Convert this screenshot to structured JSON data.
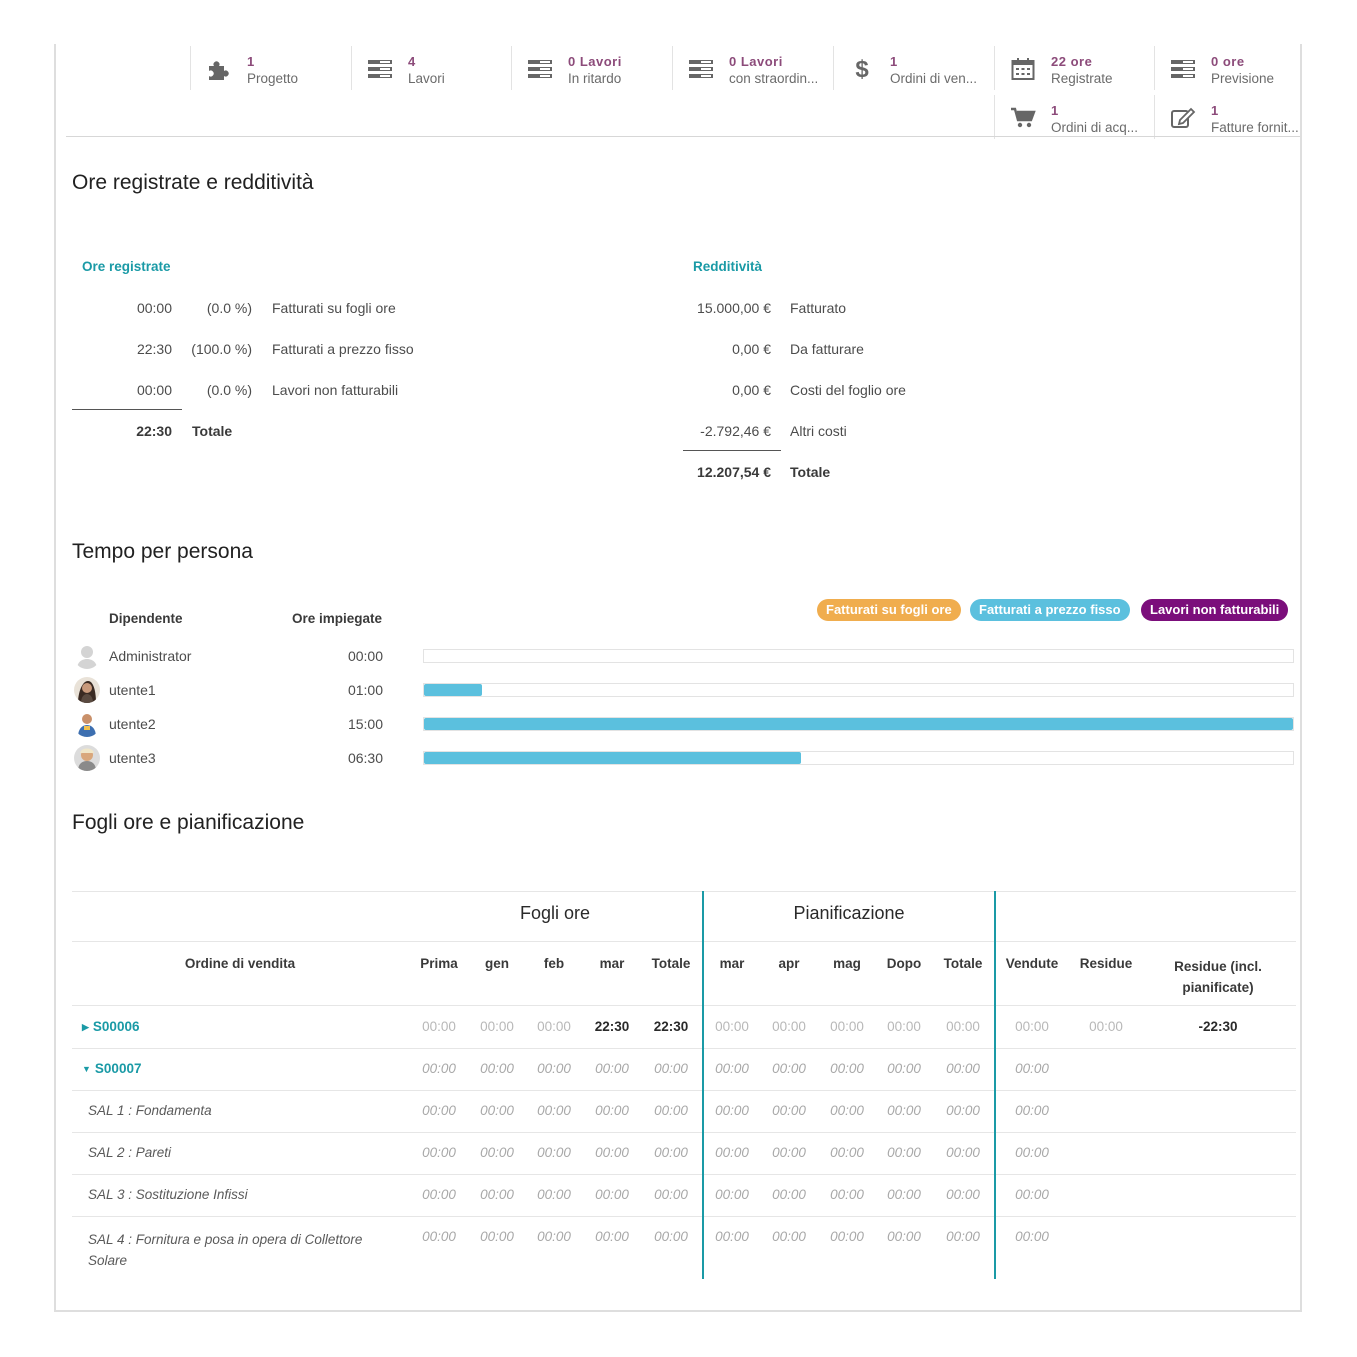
{
  "stats": [
    {
      "num": "1",
      "label": "Progetto",
      "icon": "puzzle-icon"
    },
    {
      "num": "4",
      "label": "Lavori",
      "icon": "tasks-icon"
    },
    {
      "num": "0 Lavori",
      "label": "In ritardo",
      "icon": "tasks-icon"
    },
    {
      "num": "0 Lavori",
      "label": "con straordin...",
      "icon": "tasks-icon"
    },
    {
      "num": "1",
      "label": "Ordini di ven...",
      "icon": "dollar-icon"
    },
    {
      "num": "22 ore",
      "label": "Registrate",
      "icon": "calendar-icon"
    },
    {
      "num": "0 ore",
      "label": "Previsione",
      "icon": "tasks-icon"
    },
    {
      "num": "1",
      "label": "Ordini di acq...",
      "icon": "cart-icon"
    },
    {
      "num": "1",
      "label": "Fatture fornit...",
      "icon": "edit-icon"
    }
  ],
  "section1": {
    "title": "Ore registrate e redditività",
    "hours_head": "Ore registrate",
    "hours_rows": [
      {
        "time": "00:00",
        "pct": "(0.0 %)",
        "label": "Fatturati su fogli ore"
      },
      {
        "time": "22:30",
        "pct": "(100.0 %)",
        "label": "Fatturati a prezzo fisso"
      },
      {
        "time": "00:00",
        "pct": "(0.0 %)",
        "label": "Lavori non fatturabili"
      }
    ],
    "hours_total": {
      "time": "22:30",
      "label": "Totale"
    },
    "profit_head": "Redditività",
    "profit_rows": [
      {
        "amount": "15.000,00 €",
        "label": "Fatturato"
      },
      {
        "amount": "0,00 €",
        "label": "Da fatturare"
      },
      {
        "amount": "0,00 €",
        "label": "Costi del foglio ore"
      },
      {
        "amount": "-2.792,46 €",
        "label": "Altri costi"
      }
    ],
    "profit_total": {
      "amount": "12.207,54 €",
      "label": "Totale"
    }
  },
  "section2": {
    "title": "Tempo per persona",
    "col_employee": "Dipendente",
    "col_hours": "Ore impiegate",
    "legend": [
      {
        "label": "Fatturati su fogli ore",
        "color": "#f0ad4e"
      },
      {
        "label": "Fatturati a prezzo fisso",
        "color": "#5bc0de"
      },
      {
        "label": "Lavori non fatturabili",
        "color": "#7b0e7b"
      }
    ],
    "people": [
      {
        "name": "Administrator",
        "hours": "00:00",
        "fraction": 0
      },
      {
        "name": "utente1",
        "hours": "01:00",
        "fraction": 0.0667
      },
      {
        "name": "utente2",
        "hours": "15:00",
        "fraction": 1.0
      },
      {
        "name": "utente3",
        "hours": "06:30",
        "fraction": 0.4333
      }
    ]
  },
  "section3": {
    "title": "Fogli ore e pianificazione",
    "group_timesheets": "Fogli ore",
    "group_planning": "Pianificazione",
    "col_order": "Ordine di vendita",
    "columns": [
      "Prima",
      "gen",
      "feb",
      "mar",
      "Totale",
      "mar",
      "apr",
      "mag",
      "Dopo",
      "Totale",
      "Vendute",
      "Residue"
    ],
    "col_remaining_incl_1": "Residue (incl.",
    "col_remaining_incl_2": "pianificate)",
    "rows": [
      {
        "label": "S00006",
        "values": [
          "00:00",
          "00:00",
          "00:00",
          "22:30",
          "22:30",
          "00:00",
          "00:00",
          "00:00",
          "00:00",
          "00:00",
          "00:00",
          "00:00",
          "-22:30"
        ]
      },
      {
        "label": "S00007",
        "values": [
          "00:00",
          "00:00",
          "00:00",
          "00:00",
          "00:00",
          "00:00",
          "00:00",
          "00:00",
          "00:00",
          "00:00",
          "00:00"
        ]
      },
      {
        "label": "SAL 1 : Fondamenta",
        "values": [
          "00:00",
          "00:00",
          "00:00",
          "00:00",
          "00:00",
          "00:00",
          "00:00",
          "00:00",
          "00:00",
          "00:00",
          "00:00"
        ]
      },
      {
        "label": "SAL 2 : Pareti",
        "values": [
          "00:00",
          "00:00",
          "00:00",
          "00:00",
          "00:00",
          "00:00",
          "00:00",
          "00:00",
          "00:00",
          "00:00",
          "00:00"
        ]
      },
      {
        "label": "SAL 3 : Sostituzione Infissi",
        "values": [
          "00:00",
          "00:00",
          "00:00",
          "00:00",
          "00:00",
          "00:00",
          "00:00",
          "00:00",
          "00:00",
          "00:00",
          "00:00"
        ]
      },
      {
        "label_1": "SAL 4 : Fornitura e posa in opera di Collettore",
        "label_2": "Solare",
        "values": [
          "00:00",
          "00:00",
          "00:00",
          "00:00",
          "00:00",
          "00:00",
          "00:00",
          "00:00",
          "00:00",
          "00:00",
          "00:00"
        ]
      }
    ]
  }
}
